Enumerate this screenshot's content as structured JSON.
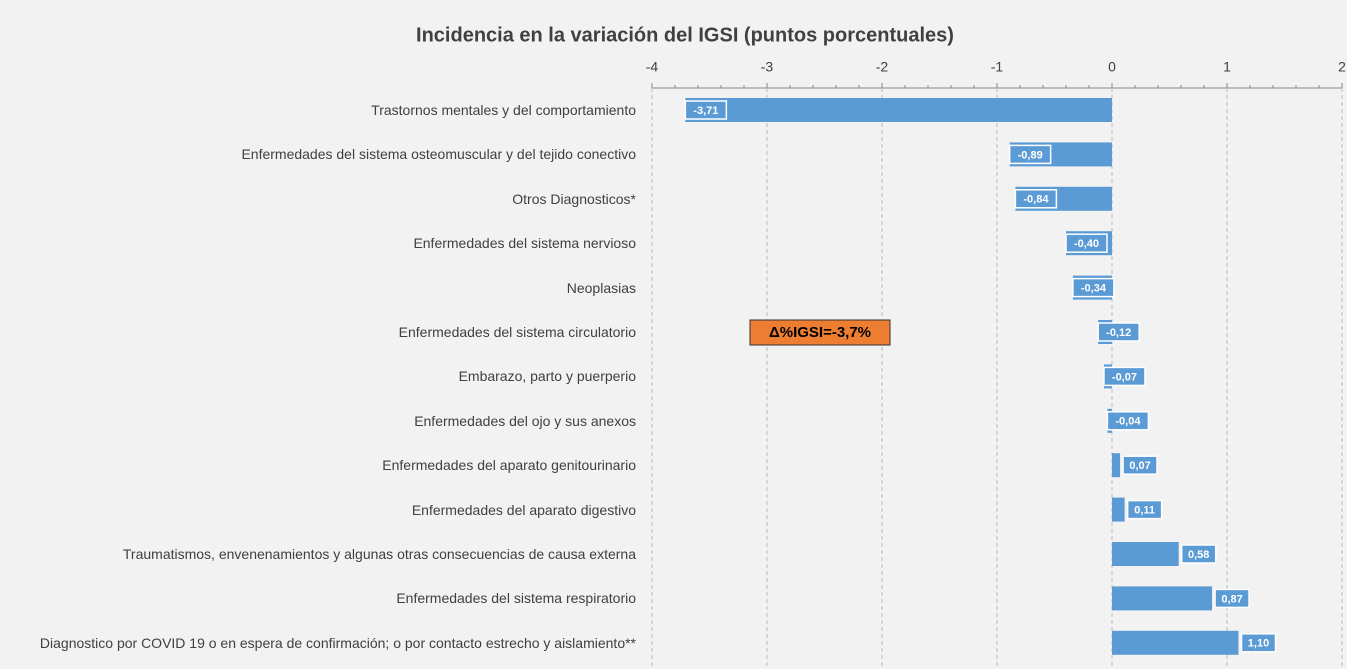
{
  "chart_data": {
    "type": "hbar",
    "title": "Incidencia en la variación del IGSI (puntos porcentuales)",
    "categories": [
      "Trastornos mentales y del comportamiento",
      "Enfermedades del sistema osteomuscular y del tejido conectivo",
      "Otros Diagnosticos*",
      "Enfermedades del sistema nervioso",
      "Neoplasias",
      "Enfermedades del sistema circulatorio",
      "Embarazo, parto y puerperio",
      "Enfermedades del ojo y sus anexos",
      "Enfermedades del aparato genitourinario",
      "Enfermedades del aparato digestivo",
      "Traumatismos, envenenamientos y algunas otras consecuencias de causa externa",
      "Enfermedades del sistema respiratorio",
      "Diagnostico por COVID 19 o en espera de confirmación; o por contacto estrecho y aislamiento**"
    ],
    "values": [
      -3.71,
      -0.89,
      -0.84,
      -0.4,
      -0.34,
      -0.12,
      -0.07,
      -0.04,
      0.07,
      0.11,
      0.58,
      0.87,
      1.1
    ],
    "value_labels": [
      "-3,71",
      "-0,89",
      "-0,84",
      "-0,40",
      "-0,34",
      "-0,12",
      "-0,07",
      "-0,04",
      "0,07",
      "0,11",
      "0,58",
      "0,87",
      "1,10"
    ],
    "color": "#5b9bd5",
    "xlim": [
      -4,
      2
    ],
    "xticks": [
      -4,
      -3,
      -2,
      -1,
      0,
      1,
      2
    ],
    "grid": true,
    "annotation": "Δ%IGSI=-3,7%"
  }
}
